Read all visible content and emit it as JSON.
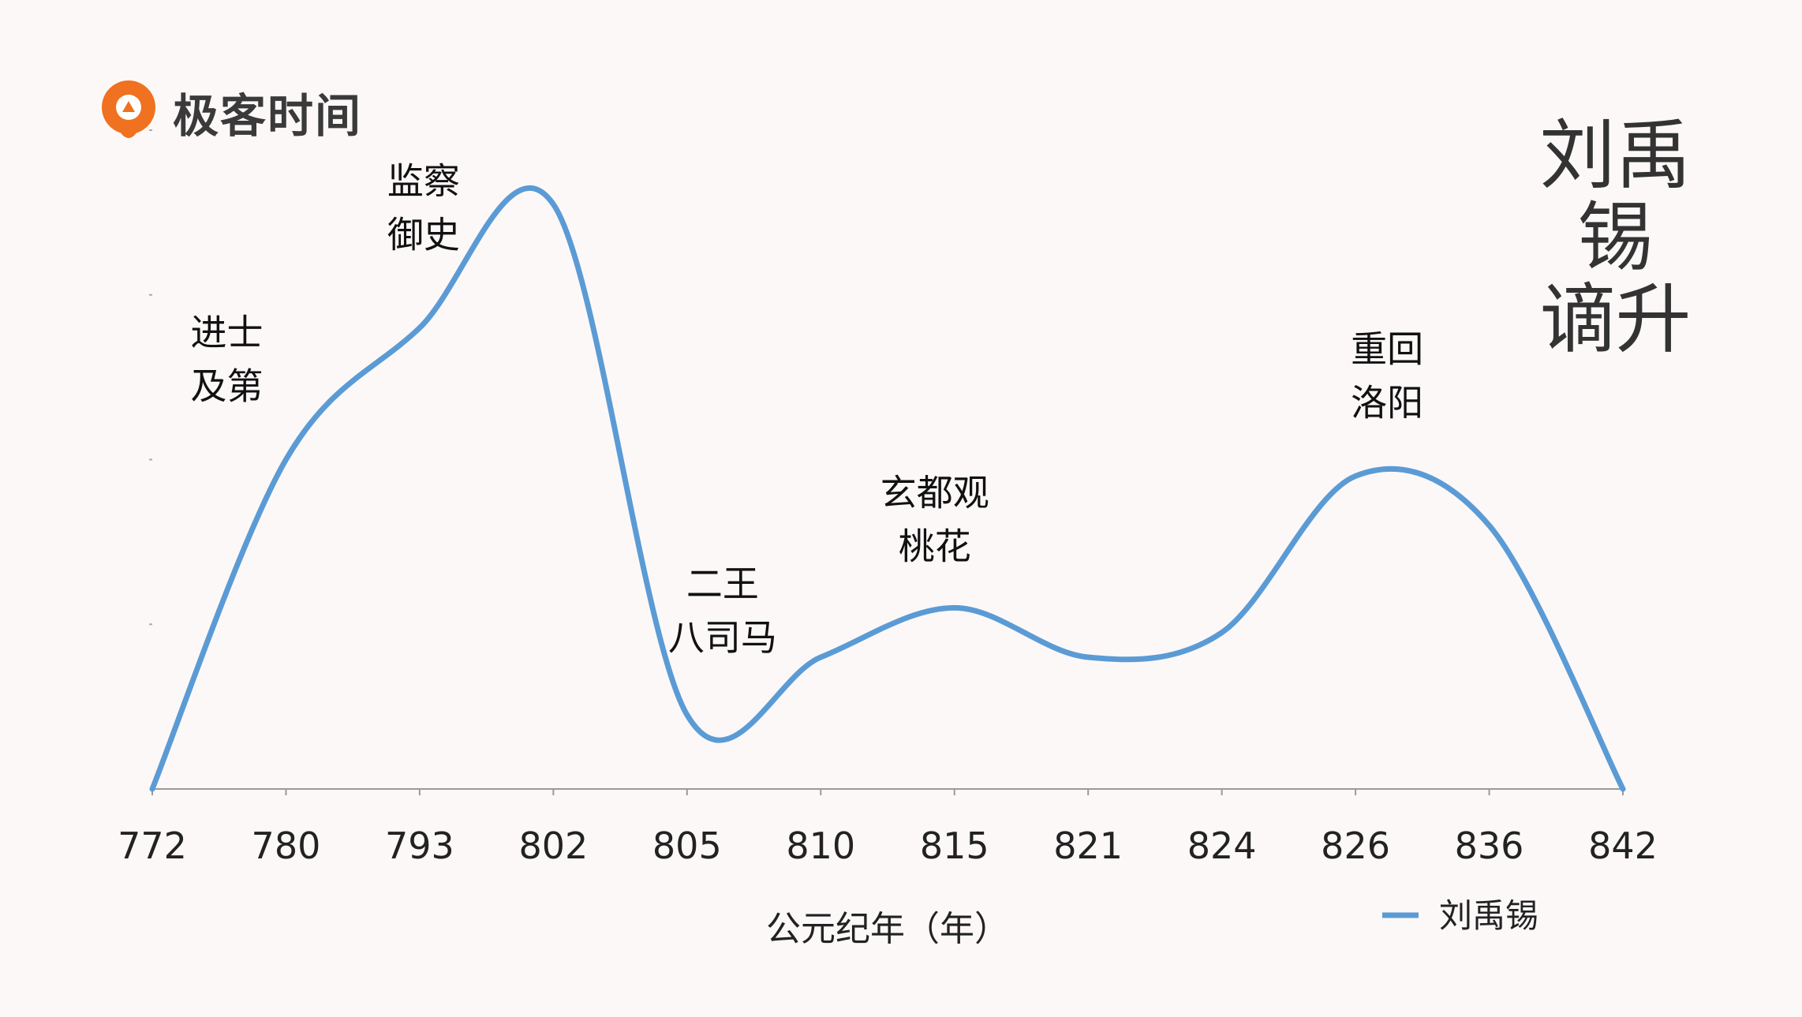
{
  "logo": {
    "text": "极客时间",
    "icon": "geektime-logo-icon",
    "brand_color": "#f0711f"
  },
  "big_title": [
    "刘禹锡",
    "谪升"
  ],
  "chart_data": {
    "type": "line",
    "smooth": true,
    "categories": [
      "772",
      "780",
      "793",
      "802",
      "805",
      "810",
      "815",
      "821",
      "824",
      "826",
      "836",
      "842"
    ],
    "series": [
      {
        "name": "刘禹锡",
        "color": "#5b9bd5",
        "values": [
          0,
          2.0,
          2.8,
          3.55,
          0.45,
          0.8,
          1.1,
          0.8,
          0.95,
          1.9,
          1.6,
          0
        ]
      }
    ],
    "title": "刘禹锡谪升",
    "xlabel": "公元纪年（年）",
    "ylabel": "",
    "ylim": [
      0,
      4
    ],
    "yticks_shown": true,
    "ytick_labels_shown": false,
    "grid": false,
    "legend": "bottom-right",
    "annotations": [
      {
        "lines": [
          "进士",
          "及第"
        ],
        "near": "780"
      },
      {
        "lines": [
          "监察",
          "御史"
        ],
        "near": "793"
      },
      {
        "lines": [
          "二王",
          "八司马"
        ],
        "near": "805"
      },
      {
        "lines": [
          "玄都观",
          "桃花"
        ],
        "near": "815"
      },
      {
        "lines": [
          "重回",
          "洛阳"
        ],
        "near": "826"
      }
    ]
  }
}
